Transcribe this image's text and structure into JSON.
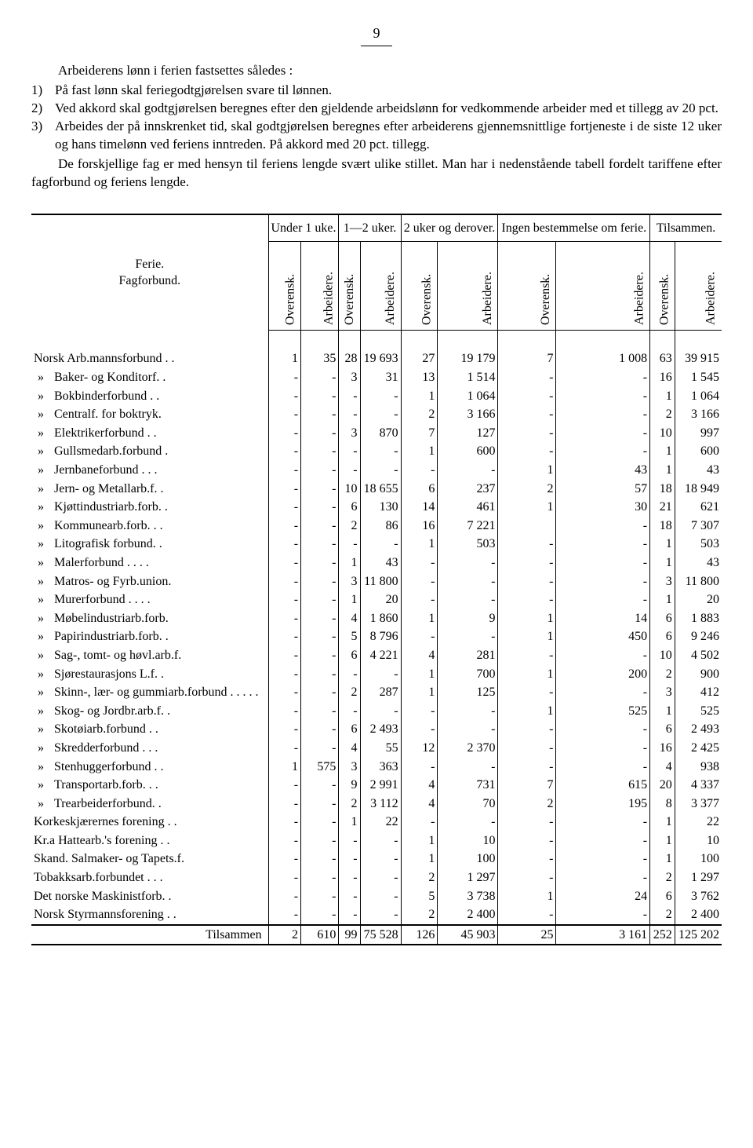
{
  "page_number": "9",
  "intro_line": "Arbeiderens lønn i ferien fastsettes således :",
  "item1_num": "1)",
  "item1": "På fast lønn skal feriegodtgjørelsen svare til lønnen.",
  "item2_num": "2)",
  "item2": "Ved akkord skal godtgjørelsen beregnes efter den gjeldende arbeidslønn for vedkommende arbeider med et tillegg av 20 pct.",
  "item3_num": "3)",
  "item3": "Arbeides der på innskrenket tid, skal godtgjørelsen beregnes efter arbeiderens gjennemsnittlige fortjeneste i de siste 12 uker og hans timelønn ved feriens inntreden.  På akkord med 20 pct. tillegg.",
  "para2": "De forskjellige fag er med hensyn til feriens lengde svært ulike stillet. Man har i nedenstående tabell fordelt tariffene efter fagforbund og feriens lengde.",
  "header_left1": "Ferie.",
  "header_left2": "Fagforbund.",
  "groups": {
    "g1": "Under 1 uke.",
    "g2": "1—2 uker.",
    "g3": "2 uker og derover.",
    "g4": "Ingen be­stem­melse om ferie.",
    "g5": "Til­sammen."
  },
  "sub_over": "Overensk.",
  "sub_arb": "Arbeidere.",
  "ditto": "»",
  "rows": [
    {
      "label": "Norsk Arb.mannsforbund . .",
      "c": [
        "1",
        "35",
        "28",
        "19 693",
        "27",
        "19 179",
        "7",
        "1 008",
        "63",
        "39 915"
      ]
    },
    {
      "ditto": true,
      "label": "Baker- og Konditorf. .",
      "c": [
        "-",
        "-",
        "3",
        "31",
        "13",
        "1 514",
        "-",
        "-",
        "16",
        "1 545"
      ]
    },
    {
      "ditto": true,
      "label": "Bokbinderforbund . .",
      "c": [
        "-",
        "-",
        "-",
        "-",
        "1",
        "1 064",
        "-",
        "-",
        "1",
        "1 064"
      ]
    },
    {
      "ditto": true,
      "label": "Centralf. for boktryk.",
      "c": [
        "-",
        "-",
        "-",
        "-",
        "2",
        "3 166",
        "-",
        "-",
        "2",
        "3 166"
      ]
    },
    {
      "ditto": true,
      "label": "Elektrikerforbund . .",
      "c": [
        "-",
        "-",
        "3",
        "870",
        "7",
        "127",
        "-",
        "-",
        "10",
        "997"
      ]
    },
    {
      "ditto": true,
      "label": "Gullsmedarb.forbund .",
      "c": [
        "-",
        "-",
        "-",
        "-",
        "1",
        "600",
        "-",
        "-",
        "1",
        "600"
      ]
    },
    {
      "ditto": true,
      "label": "Jernbaneforbund . . .",
      "c": [
        "-",
        "-",
        "-",
        "-",
        "-",
        "-",
        "1",
        "43",
        "1",
        "43"
      ]
    },
    {
      "ditto": true,
      "label": "Jern- og Metallarb.f. .",
      "c": [
        "-",
        "-",
        "10",
        "18 655",
        "6",
        "237",
        "2",
        "57",
        "18",
        "18 949"
      ]
    },
    {
      "ditto": true,
      "label": "Kjøttindustriarb.forb. .",
      "c": [
        "-",
        "-",
        "6",
        "130",
        "14",
        "461",
        "1",
        "30",
        "21",
        "621"
      ]
    },
    {
      "ditto": true,
      "label": "Kommunearb.forb. . .",
      "c": [
        "-",
        "-",
        "2",
        "86",
        "16",
        "7 221",
        "",
        "-",
        "18",
        "7 307"
      ]
    },
    {
      "ditto": true,
      "label": "Litografisk forbund. .",
      "c": [
        "-",
        "-",
        "-",
        "-",
        "1",
        "503",
        "-",
        "-",
        "1",
        "503"
      ]
    },
    {
      "ditto": true,
      "label": "Malerforbund  . . . .",
      "c": [
        "-",
        "-",
        "1",
        "43",
        "-",
        "-",
        "-",
        "-",
        "1",
        "43"
      ]
    },
    {
      "ditto": true,
      "label": "Matros- og Fyrb.union.",
      "c": [
        "-",
        "-",
        "3",
        "11 800",
        "-",
        "-",
        "-",
        "-",
        "3",
        "11 800"
      ]
    },
    {
      "ditto": true,
      "label": "Murerforbund . . . .",
      "c": [
        "-",
        "-",
        "1",
        "20",
        "-",
        "-",
        "-",
        "-",
        "1",
        "20"
      ]
    },
    {
      "ditto": true,
      "label": "Møbelindustriarb.forb.",
      "c": [
        "-",
        "-",
        "4",
        "1 860",
        "1",
        "9",
        "1",
        "14",
        "6",
        "1 883"
      ]
    },
    {
      "ditto": true,
      "label": "Papirindustriarb.forb. .",
      "c": [
        "-",
        "-",
        "5",
        "8 796",
        "-",
        "-",
        "1",
        "450",
        "6",
        "9 246"
      ]
    },
    {
      "ditto": true,
      "label": "Sag-, tomt- og høvl.arb.f.",
      "c": [
        "-",
        "-",
        "6",
        "4 221",
        "4",
        "281",
        "-",
        "-",
        "10",
        "4 502"
      ]
    },
    {
      "ditto": true,
      "label": "Sjørestaurasjons L.f. .",
      "c": [
        "-",
        "-",
        "-",
        "-",
        "1",
        "700",
        "1",
        "200",
        "2",
        "900"
      ]
    },
    {
      "ditto": true,
      "label": "Skinn-, lær- og gummi­arb.forbund . . . . .",
      "c": [
        "-",
        "-",
        "2",
        "287",
        "1",
        "125",
        "-",
        "-",
        "3",
        "412"
      ]
    },
    {
      "ditto": true,
      "label": "Skog- og Jordbr.arb.f. .",
      "c": [
        "-",
        "-",
        "-",
        "-",
        "-",
        "-",
        "1",
        "525",
        "1",
        "525"
      ]
    },
    {
      "ditto": true,
      "label": "Skotøiarb.forbund  . .",
      "c": [
        "-",
        "-",
        "6",
        "2 493",
        "-",
        "-",
        "-",
        "-",
        "6",
        "2 493"
      ]
    },
    {
      "ditto": true,
      "label": "Skredderforbund . . .",
      "c": [
        "-",
        "-",
        "4",
        "55",
        "12",
        "2 370",
        "-",
        "-",
        "16",
        "2 425"
      ]
    },
    {
      "ditto": true,
      "label": "Stenhuggerforbund . .",
      "c": [
        "1",
        "575",
        "3",
        "363",
        "-",
        "-",
        "-",
        "-",
        "4",
        "938"
      ]
    },
    {
      "ditto": true,
      "label": "Transportarb.forb. . .",
      "c": [
        "-",
        "-",
        "9",
        "2 991",
        "4",
        "731",
        "7",
        "615",
        "20",
        "4 337"
      ]
    },
    {
      "ditto": true,
      "label": "Trearbeiderforbund. .",
      "c": [
        "-",
        "-",
        "2",
        "3 112",
        "4",
        "70",
        "2",
        "195",
        "8",
        "3 377"
      ]
    },
    {
      "label": "Korkeskjærernes forening . .",
      "c": [
        "-",
        "-",
        "1",
        "22",
        "-",
        "-",
        "-",
        "-",
        "1",
        "22"
      ]
    },
    {
      "label": "Kr.a Hattearb.'s forening . .",
      "c": [
        "-",
        "-",
        "-",
        "-",
        "1",
        "10",
        "-",
        "-",
        "1",
        "10"
      ]
    },
    {
      "label": "Skand. Salmaker- og Tapets.f.",
      "c": [
        "-",
        "-",
        "-",
        "-",
        "1",
        "100",
        "-",
        "-",
        "1",
        "100"
      ]
    },
    {
      "label": "Tobakksarb.forbundet  . . .",
      "c": [
        "-",
        "-",
        "-",
        "-",
        "2",
        "1 297",
        "-",
        "-",
        "2",
        "1 297"
      ]
    },
    {
      "label": "Det norske Maskinistforb.  .",
      "c": [
        "-",
        "-",
        "-",
        "-",
        "5",
        "3 738",
        "1",
        "24",
        "6",
        "3 762"
      ]
    },
    {
      "label": "Norsk Styrmannsforening . .",
      "c": [
        "-",
        "-",
        "-",
        "-",
        "2",
        "2 400",
        "-",
        "-",
        "2",
        "2 400"
      ]
    }
  ],
  "total_label": "Tilsammen",
  "totals": [
    "2",
    "610",
    "99",
    "75 528",
    "126",
    "45 903",
    "25",
    "3 161",
    "252",
    "125 202"
  ]
}
